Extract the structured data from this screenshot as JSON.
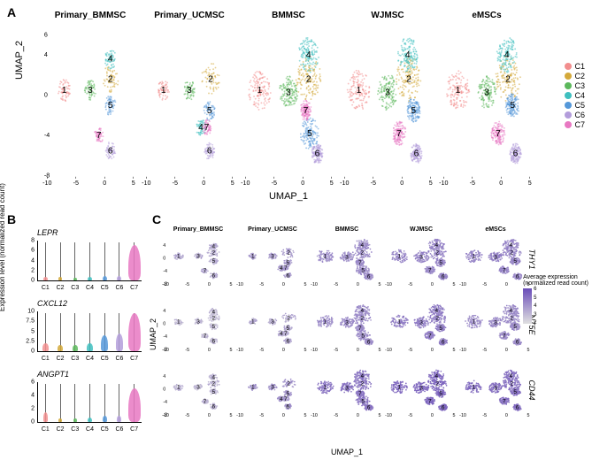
{
  "panel_labels": {
    "a": "A",
    "b": "B",
    "c": "C"
  },
  "cluster_colors": {
    "C1": "#f28e8e",
    "C2": "#d4a93a",
    "C3": "#5cb85c",
    "C4": "#3fbfbf",
    "C5": "#5598d9",
    "C6": "#b39ddb",
    "C7": "#e878c2"
  },
  "samples": [
    "Primary_BMMSC",
    "Primary_UCMSC",
    "BMMSC",
    "WJMSC",
    "eMSCs"
  ],
  "umap": {
    "x_label": "UMAP_1",
    "y_label": "UMAP_2",
    "x_ticks": [
      -10,
      -5,
      0,
      5
    ],
    "y_ticks": [
      -8,
      -4,
      0,
      4,
      6
    ],
    "note": "cluster points estimated visually; each sample shows centroids of clusters with label numbers",
    "centroids": {
      "Primary_BMMSC": {
        "1": [
          -7,
          0.5
        ],
        "2": [
          1,
          1.6
        ],
        "3": [
          -2.5,
          0.5
        ],
        "4": [
          1,
          3.6
        ],
        "5": [
          1,
          -1
        ],
        "6": [
          1,
          -5.5
        ],
        "7": [
          -1,
          -4
        ]
      },
      "Primary_UCMSC": {
        "1": [
          -7,
          0.5
        ],
        "2": [
          1.2,
          1.6
        ],
        "3": [
          -2.5,
          0.5
        ],
        "4": [
          -0.5,
          -3.2
        ],
        "5": [
          1,
          -1.5
        ],
        "6": [
          1,
          -5.5
        ],
        "7": [
          0.5,
          -3.2
        ]
      },
      "BMMSC": {
        "1": [
          -7.5,
          0.5
        ],
        "2": [
          1,
          1.6
        ],
        "3": [
          -2.5,
          0.3
        ],
        "4": [
          1,
          4
        ],
        "5": [
          1.2,
          -3.8
        ],
        "6": [
          2.5,
          -5.8
        ],
        "7": [
          0.5,
          -1.5
        ]
      },
      "WJMSC": {
        "1": [
          -7.5,
          0.5
        ],
        "2": [
          1.2,
          1.6
        ],
        "3": [
          -2.5,
          0.3
        ],
        "4": [
          1,
          4
        ],
        "5": [
          2,
          -1.5
        ],
        "6": [
          2.5,
          -5.8
        ],
        "7": [
          -0.5,
          -3.8
        ]
      },
      "eMSCs": {
        "1": [
          -7.5,
          0.5
        ],
        "2": [
          1.2,
          1.6
        ],
        "3": [
          -2.5,
          0.3
        ],
        "4": [
          1,
          4
        ],
        "5": [
          2,
          -1
        ],
        "6": [
          2.5,
          -5.8
        ],
        "7": [
          -0.5,
          -3.8
        ]
      }
    },
    "blob_radius": {
      "Primary_BMMSC": {
        "1": 1.1,
        "2": 1.4,
        "3": 1.0,
        "4": 1.0,
        "5": 1.0,
        "6": 0.9,
        "7": 0.8
      },
      "Primary_UCMSC": {
        "1": 1.0,
        "2": 1.6,
        "3": 1.0,
        "4": 0.9,
        "5": 1.0,
        "6": 0.9,
        "7": 0.8
      },
      "BMMSC": {
        "1": 2.0,
        "2": 2.2,
        "3": 1.6,
        "4": 1.8,
        "5": 1.6,
        "6": 1.0,
        "7": 1.0
      },
      "WJMSC": {
        "1": 2.0,
        "2": 2.2,
        "3": 1.8,
        "4": 1.8,
        "5": 1.2,
        "6": 1.0,
        "7": 1.2
      },
      "eMSCs": {
        "1": 2.0,
        "2": 2.2,
        "3": 1.6,
        "4": 1.8,
        "5": 1.2,
        "6": 1.0,
        "7": 1.2
      }
    }
  },
  "violins": {
    "y_axis_label": "Expression level\n(normalized read count)",
    "genes": [
      "LEPR",
      "CXCL12",
      "ANGPT1"
    ],
    "x_categories": [
      "C1",
      "C2",
      "C3",
      "C4",
      "C5",
      "C6",
      "C7"
    ],
    "y_ticks": {
      "LEPR": [
        0,
        2,
        4,
        6,
        8
      ],
      "CXCL12": [
        0,
        2.5,
        5.0,
        7.5,
        10.0
      ],
      "ANGPT1": [
        0,
        2,
        4,
        6
      ]
    },
    "heights_rel": {
      "LEPR": [
        0.1,
        0.08,
        0.06,
        0.1,
        0.12,
        0.12,
        0.9
      ],
      "CXCL12": [
        0.2,
        0.15,
        0.15,
        0.2,
        0.4,
        0.45,
        0.95
      ],
      "ANGPT1": [
        0.25,
        0.08,
        0.08,
        0.12,
        0.15,
        0.15,
        0.85
      ]
    },
    "widths_rel": {
      "LEPR": [
        0.35,
        0.3,
        0.3,
        0.35,
        0.35,
        0.35,
        1.0
      ],
      "CXCL12": [
        0.45,
        0.4,
        0.4,
        0.45,
        0.55,
        0.6,
        1.0
      ],
      "ANGPT1": [
        0.4,
        0.3,
        0.3,
        0.35,
        0.35,
        0.35,
        1.0
      ]
    }
  },
  "panel_c": {
    "genes": [
      "THY1",
      "NT5E",
      "CD44"
    ],
    "legend_title": "Average expression\n(normalized read count)",
    "legend_ticks": [
      2,
      3,
      4,
      5,
      6
    ],
    "color_low": "#e0e0e0",
    "color_high": "#6a4db8",
    "x_label": "UMAP_1",
    "y_label": "UMAP_2",
    "x_ticks": [
      -10,
      -5,
      0,
      5
    ],
    "y_ticks": [
      -8,
      -4,
      0,
      4
    ],
    "intensity": {
      "THY1": {
        "Primary_BMMSC": 0.35,
        "Primary_UCMSC": 0.45,
        "BMMSC": 0.55,
        "WJMSC": 0.6,
        "eMSCs": 0.6
      },
      "NT5E": {
        "Primary_BMMSC": 0.25,
        "Primary_UCMSC": 0.35,
        "BMMSC": 0.55,
        "WJMSC": 0.65,
        "eMSCs": 0.55
      },
      "CD44": {
        "Primary_BMMSC": 0.3,
        "Primary_UCMSC": 0.5,
        "BMMSC": 0.7,
        "WJMSC": 0.8,
        "eMSCs": 0.75
      }
    }
  }
}
